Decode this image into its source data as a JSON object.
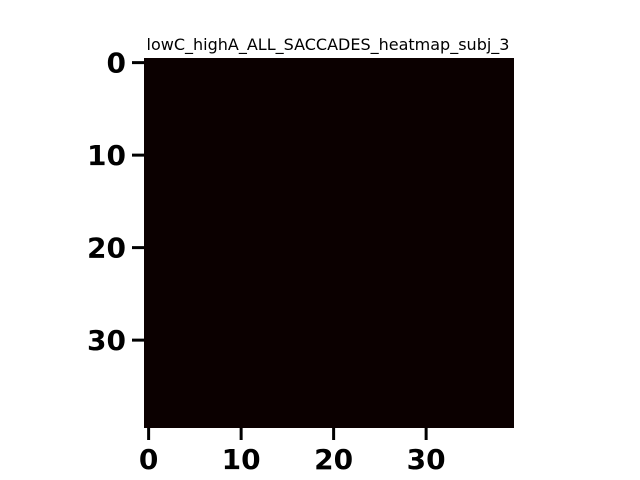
{
  "chart_data": {
    "type": "heatmap",
    "title": "lowC_highA_ALL_SACCADES_heatmap_subj_3",
    "xlabel": "",
    "ylabel": "",
    "n_cols": 40,
    "n_rows": 40,
    "xlim": [
      -0.5,
      39.5
    ],
    "ylim": [
      39.5,
      -0.5
    ],
    "x_ticks": [
      0,
      10,
      20,
      30
    ],
    "y_ticks": [
      0,
      10,
      20,
      30
    ],
    "x_tick_labels": [
      "0",
      "10",
      "20",
      "30"
    ],
    "y_tick_labels": [
      "0",
      "10",
      "20",
      "30"
    ],
    "cell_value": 0,
    "cell_color": "#0b0000",
    "colorbar": false,
    "grid": false
  }
}
